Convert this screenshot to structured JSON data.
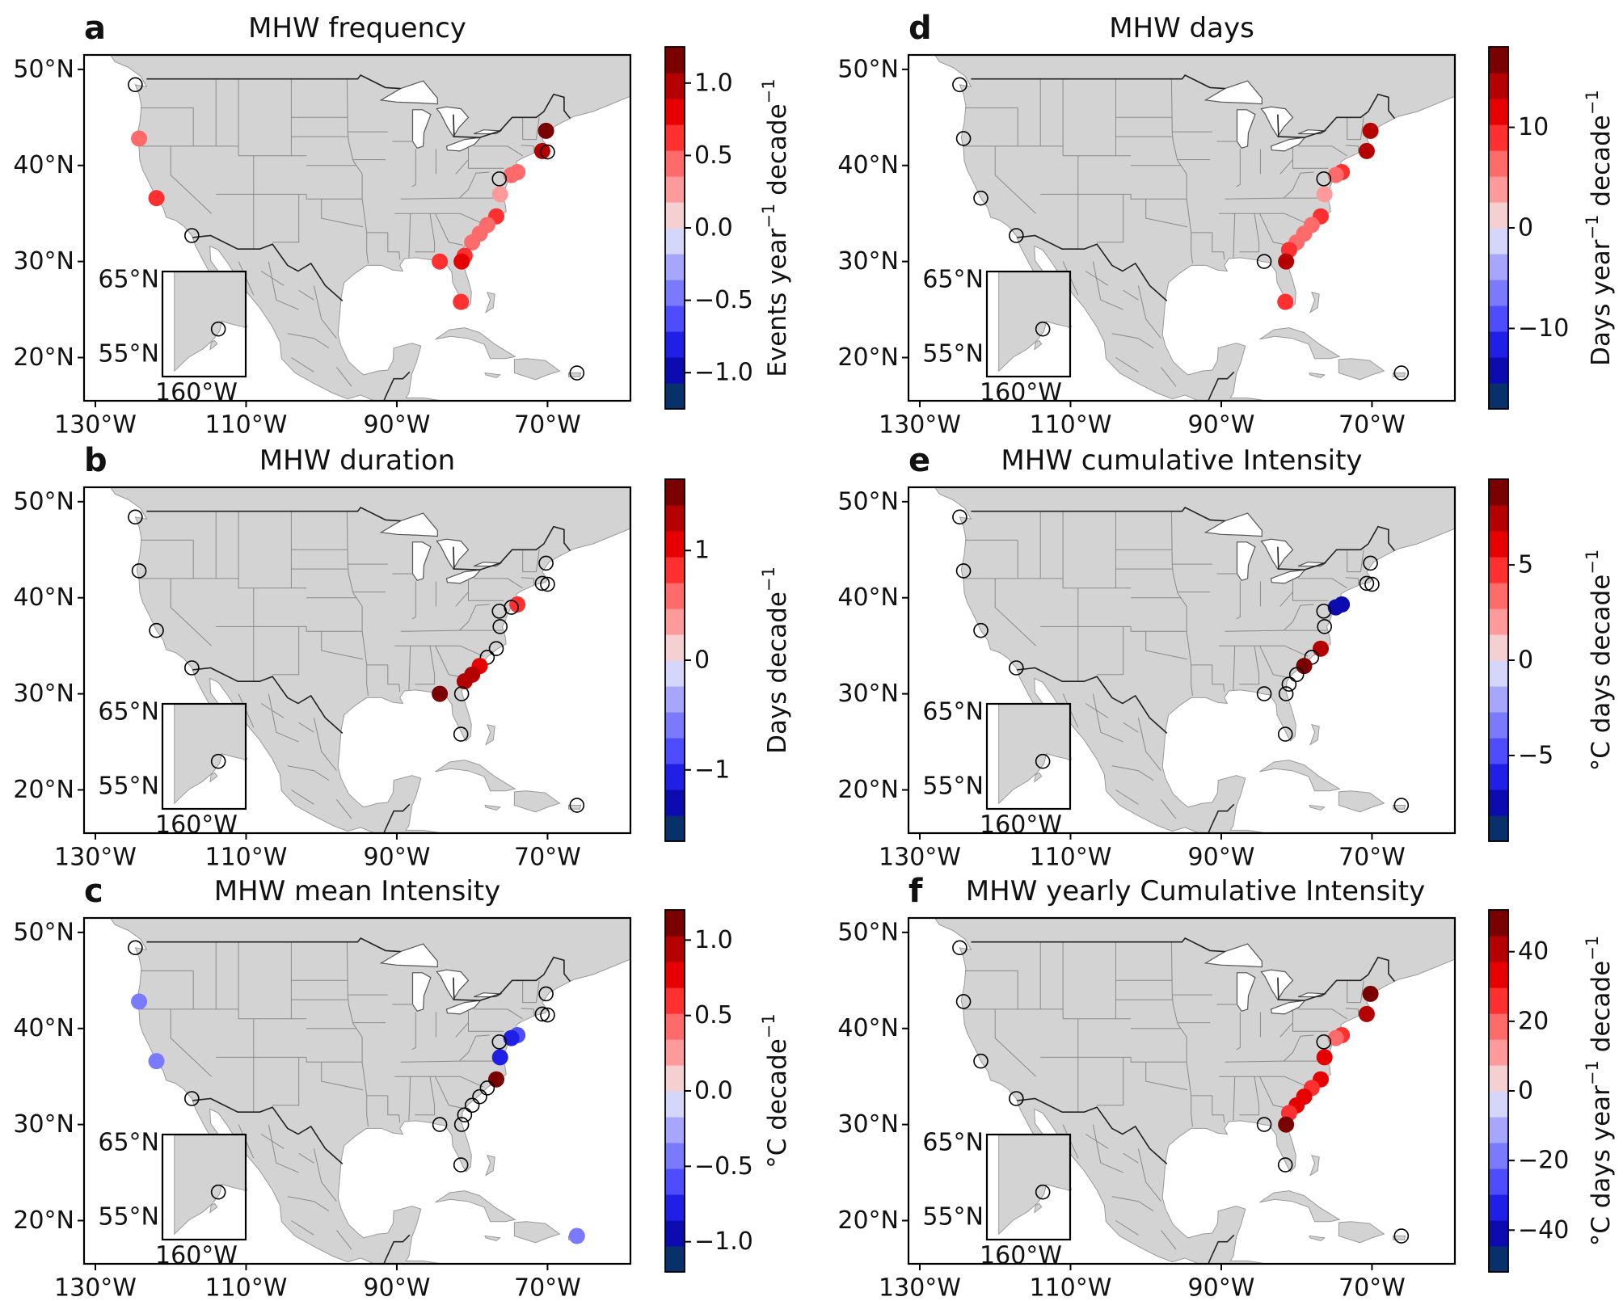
{
  "figure": {
    "colormap": [
      "#08306b",
      "#0b0bb0",
      "#1f1fe6",
      "#4d4dff",
      "#7a7aff",
      "#a6a6ff",
      "#d6d6fb",
      "#f4d0d0",
      "#ff9a9a",
      "#ff6a6a",
      "#ff3030",
      "#e60000",
      "#b40000",
      "#7a0000"
    ],
    "land_color": "#d3d3d3",
    "border_color": "#555555"
  },
  "chart_data": [
    {
      "type": "scatter",
      "id": "a",
      "panel": "a",
      "title": "MHW frequency",
      "colorbar": {
        "label": "Events year−1 decade−1",
        "label_html": [
          "Events year",
          "−1",
          " decade",
          "−1"
        ],
        "range": [
          -1.25,
          1.25
        ],
        "ticks": [
          "1.0",
          "0.5",
          "0.0",
          "−0.5",
          "−1.0"
        ],
        "tick_values": [
          1.0,
          0.5,
          0.0,
          -0.5,
          -1.0
        ]
      },
      "xticks": [
        "130°W",
        "110°W",
        "90°W",
        "70°W"
      ],
      "yticks": [
        "50°N",
        "40°N",
        "30°N",
        "20°N"
      ],
      "inset_labels": [
        "65°N",
        "55°N",
        "160°W"
      ],
      "points": [
        {
          "lon": -124.7,
          "lat": 48.4,
          "value": null
        },
        {
          "lon": -124.2,
          "lat": 42.8,
          "value": 0.45
        },
        {
          "lon": -121.9,
          "lat": 36.6,
          "value": 0.65
        },
        {
          "lon": -117.2,
          "lat": 32.7,
          "value": null
        },
        {
          "lon": -151.5,
          "lat": 59.6,
          "value": null
        },
        {
          "lon": -70.2,
          "lat": 43.6,
          "value": 1.15
        },
        {
          "lon": -70.7,
          "lat": 41.5,
          "value": 0.95
        },
        {
          "lon": -70.0,
          "lat": 41.4,
          "value": null
        },
        {
          "lon": -74.0,
          "lat": 39.3,
          "value": 0.5
        },
        {
          "lon": -74.8,
          "lat": 39.0,
          "value": 0.45
        },
        {
          "lon": -76.4,
          "lat": 38.6,
          "value": null
        },
        {
          "lon": -76.3,
          "lat": 37.0,
          "value": 0.35
        },
        {
          "lon": -76.8,
          "lat": 34.7,
          "value": 0.6
        },
        {
          "lon": -78.0,
          "lat": 33.8,
          "value": 0.5
        },
        {
          "lon": -79.0,
          "lat": 32.9,
          "value": 0.45
        },
        {
          "lon": -80.0,
          "lat": 32.0,
          "value": 0.5
        },
        {
          "lon": -81.0,
          "lat": 30.6,
          "value": 0.55
        },
        {
          "lon": -81.4,
          "lat": 30.0,
          "value": 0.75
        },
        {
          "lon": -84.3,
          "lat": 30.0,
          "value": 0.6
        },
        {
          "lon": -81.5,
          "lat": 25.8,
          "value": 0.7
        },
        {
          "lon": -66.1,
          "lat": 18.4,
          "value": null
        }
      ]
    },
    {
      "type": "scatter",
      "id": "b",
      "panel": "b",
      "title": "MHW duration",
      "colorbar": {
        "label": "Days decade−1",
        "label_html": [
          "Days decade",
          "−1"
        ],
        "range": [
          -1.65,
          1.65
        ],
        "ticks": [
          "1",
          "0",
          "−1"
        ],
        "tick_values": [
          1,
          0,
          -1
        ]
      },
      "xticks": [
        "130°W",
        "110°W",
        "90°W",
        "70°W"
      ],
      "yticks": [
        "50°N",
        "40°N",
        "30°N",
        "20°N"
      ],
      "inset_labels": [
        "65°N",
        "55°N",
        "160°W"
      ],
      "points": [
        {
          "lon": -124.7,
          "lat": 48.4,
          "value": null
        },
        {
          "lon": -124.2,
          "lat": 42.8,
          "value": null
        },
        {
          "lon": -121.9,
          "lat": 36.6,
          "value": null
        },
        {
          "lon": -117.2,
          "lat": 32.7,
          "value": null
        },
        {
          "lon": -151.5,
          "lat": 59.6,
          "value": null
        },
        {
          "lon": -70.2,
          "lat": 43.6,
          "value": null
        },
        {
          "lon": -70.7,
          "lat": 41.5,
          "value": null
        },
        {
          "lon": -70.0,
          "lat": 41.4,
          "value": null
        },
        {
          "lon": -74.0,
          "lat": 39.3,
          "value": 0.9
        },
        {
          "lon": -74.8,
          "lat": 39.0,
          "value": null
        },
        {
          "lon": -76.4,
          "lat": 38.6,
          "value": null
        },
        {
          "lon": -76.3,
          "lat": 37.0,
          "value": null
        },
        {
          "lon": -76.8,
          "lat": 34.7,
          "value": null
        },
        {
          "lon": -78.0,
          "lat": 33.8,
          "value": null
        },
        {
          "lon": -79.0,
          "lat": 32.9,
          "value": 1.0
        },
        {
          "lon": -80.0,
          "lat": 32.0,
          "value": 1.3
        },
        {
          "lon": -81.0,
          "lat": 31.3,
          "value": 1.2
        },
        {
          "lon": -81.4,
          "lat": 30.0,
          "value": null
        },
        {
          "lon": -84.3,
          "lat": 30.0,
          "value": 1.5
        },
        {
          "lon": -81.5,
          "lat": 25.8,
          "value": null
        },
        {
          "lon": -66.1,
          "lat": 18.4,
          "value": null
        }
      ]
    },
    {
      "type": "scatter",
      "id": "c",
      "panel": "c",
      "title": "MHW mean Intensity",
      "colorbar": {
        "label": "°C decade−1",
        "label_html": [
          "°C decade",
          "−1"
        ],
        "range": [
          -1.2,
          1.2
        ],
        "ticks": [
          "1.0",
          "0.5",
          "0.0",
          "−0.5",
          "−1.0"
        ],
        "tick_values": [
          1.0,
          0.5,
          0.0,
          -0.5,
          -1.0
        ]
      },
      "xticks": [
        "130°W",
        "110°W",
        "90°W",
        "70°W"
      ],
      "yticks": [
        "50°N",
        "40°N",
        "30°N",
        "20°N"
      ],
      "inset_labels": [
        "65°N",
        "55°N",
        "160°W"
      ],
      "points": [
        {
          "lon": -124.7,
          "lat": 48.4,
          "value": null
        },
        {
          "lon": -124.2,
          "lat": 42.8,
          "value": -0.35
        },
        {
          "lon": -121.9,
          "lat": 36.6,
          "value": -0.45
        },
        {
          "lon": -117.2,
          "lat": 32.7,
          "value": null
        },
        {
          "lon": -151.5,
          "lat": 59.6,
          "value": null
        },
        {
          "lon": -70.2,
          "lat": 43.6,
          "value": null
        },
        {
          "lon": -70.7,
          "lat": 41.5,
          "value": null
        },
        {
          "lon": -70.0,
          "lat": 41.4,
          "value": null
        },
        {
          "lon": -74.0,
          "lat": 39.3,
          "value": -0.6
        },
        {
          "lon": -74.8,
          "lat": 39.0,
          "value": -0.7
        },
        {
          "lon": -76.4,
          "lat": 38.6,
          "value": null
        },
        {
          "lon": -76.3,
          "lat": 37.0,
          "value": -0.75
        },
        {
          "lon": -76.8,
          "lat": 34.7,
          "value": 1.1
        },
        {
          "lon": -78.0,
          "lat": 33.8,
          "value": null
        },
        {
          "lon": -79.0,
          "lat": 32.9,
          "value": null
        },
        {
          "lon": -80.0,
          "lat": 32.0,
          "value": null
        },
        {
          "lon": -81.0,
          "lat": 31.0,
          "value": null
        },
        {
          "lon": -81.4,
          "lat": 30.0,
          "value": null
        },
        {
          "lon": -84.3,
          "lat": 30.0,
          "value": null
        },
        {
          "lon": -81.5,
          "lat": 25.8,
          "value": null
        },
        {
          "lon": -66.1,
          "lat": 18.4,
          "value": -0.35
        }
      ]
    },
    {
      "type": "scatter",
      "id": "d",
      "panel": "d",
      "title": "MHW days",
      "colorbar": {
        "label": "Days year−1 decade−1",
        "label_html": [
          "Days year",
          "−1",
          " decade",
          "−1"
        ],
        "range": [
          -18,
          18
        ],
        "ticks": [
          "10",
          "0",
          "−10"
        ],
        "tick_values": [
          10,
          0,
          -10
        ]
      },
      "xticks": [
        "130°W",
        "110°W",
        "90°W",
        "70°W"
      ],
      "yticks": [
        "50°N",
        "40°N",
        "30°N",
        "20°N"
      ],
      "inset_labels": [
        "65°N",
        "55°N",
        "160°W"
      ],
      "points": [
        {
          "lon": -124.7,
          "lat": 48.4,
          "value": null
        },
        {
          "lon": -124.2,
          "lat": 42.8,
          "value": null
        },
        {
          "lon": -121.9,
          "lat": 36.6,
          "value": null
        },
        {
          "lon": -117.2,
          "lat": 32.7,
          "value": null
        },
        {
          "lon": -151.5,
          "lat": 59.6,
          "value": null
        },
        {
          "lon": -70.2,
          "lat": 43.6,
          "value": 15
        },
        {
          "lon": -70.7,
          "lat": 41.5,
          "value": 14
        },
        {
          "lon": -74.0,
          "lat": 39.3,
          "value": 8
        },
        {
          "lon": -74.8,
          "lat": 39.0,
          "value": 6
        },
        {
          "lon": -76.4,
          "lat": 38.6,
          "value": null
        },
        {
          "lon": -76.3,
          "lat": 37.0,
          "value": 3
        },
        {
          "lon": -76.8,
          "lat": 34.7,
          "value": 8
        },
        {
          "lon": -78.0,
          "lat": 33.8,
          "value": 7
        },
        {
          "lon": -79.0,
          "lat": 32.9,
          "value": 6
        },
        {
          "lon": -80.0,
          "lat": 32.0,
          "value": 7
        },
        {
          "lon": -81.0,
          "lat": 31.2,
          "value": 9
        },
        {
          "lon": -81.4,
          "lat": 30.0,
          "value": 15
        },
        {
          "lon": -84.3,
          "lat": 30.0,
          "value": null
        },
        {
          "lon": -81.5,
          "lat": 25.8,
          "value": 10
        },
        {
          "lon": -66.1,
          "lat": 18.4,
          "value": null
        }
      ]
    },
    {
      "type": "scatter",
      "id": "e",
      "panel": "e",
      "title": "MHW cumulative Intensity",
      "colorbar": {
        "label": "°C days decade−1",
        "label_html": [
          "°C days decade",
          "−1"
        ],
        "range": [
          -9.5,
          9.5
        ],
        "ticks": [
          "5",
          "0",
          "−5"
        ],
        "tick_values": [
          5,
          0,
          -5
        ]
      },
      "xticks": [
        "130°W",
        "110°W",
        "90°W",
        "70°W"
      ],
      "yticks": [
        "50°N",
        "40°N",
        "30°N",
        "20°N"
      ],
      "inset_labels": [
        "65°N",
        "55°N",
        "160°W"
      ],
      "points": [
        {
          "lon": -124.7,
          "lat": 48.4,
          "value": null
        },
        {
          "lon": -124.2,
          "lat": 42.8,
          "value": null
        },
        {
          "lon": -121.9,
          "lat": 36.6,
          "value": null
        },
        {
          "lon": -117.2,
          "lat": 32.7,
          "value": null
        },
        {
          "lon": -151.5,
          "lat": 59.6,
          "value": null
        },
        {
          "lon": -70.2,
          "lat": 43.6,
          "value": null
        },
        {
          "lon": -70.7,
          "lat": 41.5,
          "value": null
        },
        {
          "lon": -70.0,
          "lat": 41.4,
          "value": null
        },
        {
          "lon": -74.0,
          "lat": 39.3,
          "value": -8
        },
        {
          "lon": -74.8,
          "lat": 39.0,
          "value": -7
        },
        {
          "lon": -76.4,
          "lat": 38.6,
          "value": null
        },
        {
          "lon": -76.3,
          "lat": 37.0,
          "value": null
        },
        {
          "lon": -76.8,
          "lat": 34.7,
          "value": 8
        },
        {
          "lon": -78.0,
          "lat": 33.8,
          "value": null
        },
        {
          "lon": -79.0,
          "lat": 32.9,
          "value": 9
        },
        {
          "lon": -80.0,
          "lat": 32.0,
          "value": null
        },
        {
          "lon": -81.0,
          "lat": 31.0,
          "value": null
        },
        {
          "lon": -81.4,
          "lat": 30.0,
          "value": null
        },
        {
          "lon": -84.3,
          "lat": 30.0,
          "value": null
        },
        {
          "lon": -81.5,
          "lat": 25.8,
          "value": null
        },
        {
          "lon": -66.1,
          "lat": 18.4,
          "value": null
        }
      ]
    },
    {
      "type": "scatter",
      "id": "f",
      "panel": "f",
      "title": "MHW yearly Cumulative Intensity",
      "colorbar": {
        "label": "°C days year−1 decade−1",
        "label_html": [
          "°C days year",
          "−1",
          " decade",
          "−1"
        ],
        "range": [
          -52,
          52
        ],
        "ticks": [
          "40",
          "20",
          "0",
          "−20",
          "−40"
        ],
        "tick_values": [
          40,
          20,
          0,
          -20,
          -40
        ]
      },
      "xticks": [
        "130°W",
        "110°W",
        "90°W",
        "70°W"
      ],
      "yticks": [
        "50°N",
        "40°N",
        "30°N",
        "20°N"
      ],
      "inset_labels": [
        "65°N",
        "55°N",
        "160°W"
      ],
      "points": [
        {
          "lon": -124.7,
          "lat": 48.4,
          "value": null
        },
        {
          "lon": -124.2,
          "lat": 42.8,
          "value": null
        },
        {
          "lon": -121.9,
          "lat": 36.6,
          "value": null
        },
        {
          "lon": -117.2,
          "lat": 32.7,
          "value": null
        },
        {
          "lon": -151.5,
          "lat": 59.6,
          "value": null
        },
        {
          "lon": -70.2,
          "lat": 43.6,
          "value": 45
        },
        {
          "lon": -70.7,
          "lat": 41.5,
          "value": 40
        },
        {
          "lon": -74.0,
          "lat": 39.3,
          "value": 25
        },
        {
          "lon": -74.8,
          "lat": 39.0,
          "value": 22
        },
        {
          "lon": -76.4,
          "lat": 38.6,
          "value": null
        },
        {
          "lon": -76.3,
          "lat": 37.0,
          "value": 30
        },
        {
          "lon": -76.8,
          "lat": 34.7,
          "value": 30
        },
        {
          "lon": -78.0,
          "lat": 33.8,
          "value": 28
        },
        {
          "lon": -79.0,
          "lat": 32.9,
          "value": 30
        },
        {
          "lon": -80.0,
          "lat": 32.0,
          "value": 30
        },
        {
          "lon": -81.0,
          "lat": 31.2,
          "value": 28
        },
        {
          "lon": -81.4,
          "lat": 30.0,
          "value": 45
        },
        {
          "lon": -84.3,
          "lat": 30.0,
          "value": null
        },
        {
          "lon": -81.5,
          "lat": 25.8,
          "value": null
        },
        {
          "lon": -66.1,
          "lat": 18.4,
          "value": null
        }
      ]
    }
  ]
}
